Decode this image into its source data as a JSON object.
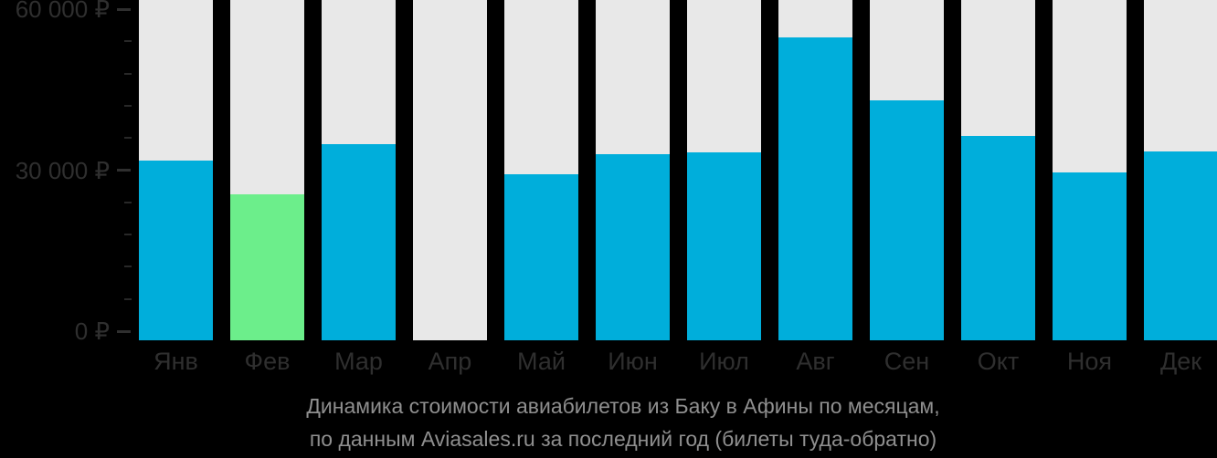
{
  "chart_data": {
    "type": "bar",
    "title": "Динамика стоимости авиабилетов из Баку в Афины по месяцам, по данным Aviasales.ru за последний год (билеты туда-обратно)",
    "caption_line1": "Динамика стоимости авиабилетов из Баку в Афины по месяцам,",
    "caption_line2": "по данным Aviasales.ru за последний год (билеты туда-обратно)",
    "categories": [
      "Янв",
      "Фев",
      "Мар",
      "Апр",
      "Май",
      "Июн",
      "Июл",
      "Авг",
      "Сен",
      "Окт",
      "Ноя",
      "Дек"
    ],
    "values": [
      31800,
      25500,
      34800,
      null,
      29200,
      33000,
      33300,
      54700,
      43000,
      36400,
      29600,
      33500
    ],
    "currency": "₽",
    "xlabel": "",
    "ylabel": "",
    "y_ticks": [
      {
        "value": 60000,
        "label": "60 000 ₽"
      },
      {
        "value": 30000,
        "label": "30 000 ₽"
      },
      {
        "value": 0,
        "label": "0 ₽"
      }
    ],
    "minor_tick_step": 6000,
    "ylim": [
      0,
      61700
    ],
    "highlight_index": 1,
    "grid": "off",
    "legend": "none"
  },
  "colors": {
    "background": "#000000",
    "bar": "#00aedb",
    "bar_highlight": "#6cee8b",
    "column_track": "#e8e8e8",
    "axis_text": "#2f2f2f",
    "caption_text": "#8f8f8f"
  }
}
